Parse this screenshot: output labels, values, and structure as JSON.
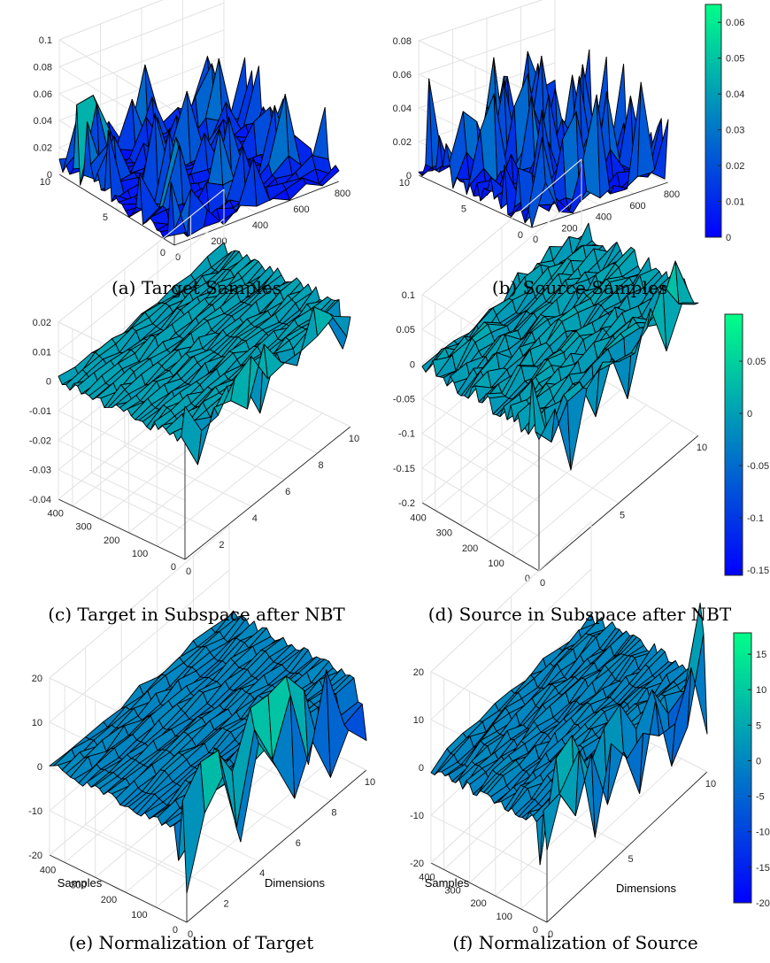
{
  "figure": {
    "panels": [
      {
        "id": "a",
        "caption": "(a) Target Samples"
      },
      {
        "id": "b",
        "caption": "(b) Source Samples"
      },
      {
        "id": "c",
        "caption": "(c) Target in Subspace after NBT"
      },
      {
        "id": "d",
        "caption": "(d) Source in Subspace after NBT"
      },
      {
        "id": "e",
        "caption": "(e) Normalization of Target"
      },
      {
        "id": "f",
        "caption": "(f) Normalization of Source"
      }
    ],
    "colormap": [
      "#0000ff",
      "#00ff88"
    ]
  },
  "chart_data": [
    {
      "panel": "a",
      "type": "surface",
      "title": "",
      "xlabel": "",
      "ylabel": "",
      "zlabel": "",
      "x_ticks": [
        "0",
        "200",
        "400",
        "600",
        "800"
      ],
      "y_ticks": [
        "0",
        "5",
        "10"
      ],
      "z_ticks": [
        "0",
        "0.02",
        "0.04",
        "0.06",
        "0.08",
        "0.1"
      ],
      "xlim": [
        0,
        800
      ],
      "ylim": [
        0,
        10
      ],
      "zlim": [
        0,
        0.1
      ],
      "color_range": [
        0,
        0.065
      ],
      "grid": true,
      "colorbar": false
    },
    {
      "panel": "b",
      "type": "surface",
      "title": "",
      "xlabel": "",
      "ylabel": "",
      "zlabel": "",
      "x_ticks": [
        "0",
        "200",
        "400",
        "600",
        "800"
      ],
      "y_ticks": [
        "0",
        "5",
        "10"
      ],
      "z_ticks": [
        "0",
        "0.02",
        "0.04",
        "0.06",
        "0.08"
      ],
      "xlim": [
        0,
        800
      ],
      "ylim": [
        0,
        10
      ],
      "zlim": [
        0,
        0.08
      ],
      "color_range": [
        0,
        0.065
      ],
      "grid": true,
      "colorbar": true,
      "colorbar_ticks": [
        "0",
        "0.01",
        "0.02",
        "0.03",
        "0.04",
        "0.05",
        "0.06"
      ],
      "colorbar_range": [
        0,
        0.065
      ]
    },
    {
      "panel": "c",
      "type": "surface",
      "title": "",
      "xlabel": "",
      "ylabel": "",
      "zlabel": "",
      "x_ticks": [
        "0",
        "2",
        "4",
        "6",
        "8",
        "10"
      ],
      "y_ticks": [
        "0",
        "100",
        "200",
        "300",
        "400"
      ],
      "z_ticks": [
        "-0.04",
        "-0.03",
        "-0.02",
        "-0.01",
        "0",
        "0.01",
        "0.02"
      ],
      "xlim": [
        0,
        10
      ],
      "ylim": [
        0,
        450
      ],
      "zlim": [
        -0.04,
        0.02
      ],
      "color_range": [
        -0.03,
        0.018
      ],
      "grid": true,
      "colorbar": false
    },
    {
      "panel": "d",
      "type": "surface",
      "title": "",
      "xlabel": "",
      "ylabel": "",
      "zlabel": "",
      "x_ticks": [
        "0",
        "5",
        "10"
      ],
      "y_ticks": [
        "0",
        "100",
        "200",
        "300",
        "400"
      ],
      "z_ticks": [
        "-0.2",
        "-0.15",
        "-0.1",
        "-0.05",
        "0",
        "0.05",
        "0.1"
      ],
      "xlim": [
        0,
        10
      ],
      "ylim": [
        0,
        450
      ],
      "zlim": [
        -0.2,
        0.1
      ],
      "color_range": [
        -0.155,
        0.095
      ],
      "grid": true,
      "colorbar": true,
      "colorbar_ticks": [
        "-0.15",
        "-0.1",
        "-0.05",
        "0",
        "0.05"
      ],
      "colorbar_range": [
        -0.155,
        0.095
      ]
    },
    {
      "panel": "e",
      "type": "surface",
      "title": "",
      "xlabel": "Dimensions",
      "ylabel": "Samples",
      "zlabel": "",
      "x_ticks": [
        "0",
        "2",
        "4",
        "6",
        "8",
        "10"
      ],
      "y_ticks": [
        "0",
        "100",
        "200",
        "300",
        "400"
      ],
      "z_ticks": [
        "-20",
        "-10",
        "0",
        "10",
        "20"
      ],
      "xlim": [
        0,
        10
      ],
      "ylim": [
        0,
        450
      ],
      "zlim": [
        -20,
        20
      ],
      "color_range": [
        -20,
        18
      ],
      "grid": true,
      "colorbar": false
    },
    {
      "panel": "f",
      "type": "surface",
      "title": "",
      "xlabel": "Dimensions",
      "ylabel": "Samples",
      "zlabel": "",
      "x_ticks": [
        "0",
        "5",
        "10"
      ],
      "y_ticks": [
        "0",
        "100",
        "200",
        "300",
        "400"
      ],
      "z_ticks": [
        "-20",
        "-10",
        "0",
        "10",
        "20"
      ],
      "xlim": [
        0,
        10
      ],
      "ylim": [
        0,
        450
      ],
      "zlim": [
        -20,
        20
      ],
      "color_range": [
        -20,
        18
      ],
      "grid": true,
      "colorbar": true,
      "colorbar_ticks": [
        "-20",
        "-15",
        "-10",
        "-5",
        "0",
        "5",
        "10",
        "15"
      ],
      "colorbar_range": [
        -20,
        18
      ]
    }
  ]
}
